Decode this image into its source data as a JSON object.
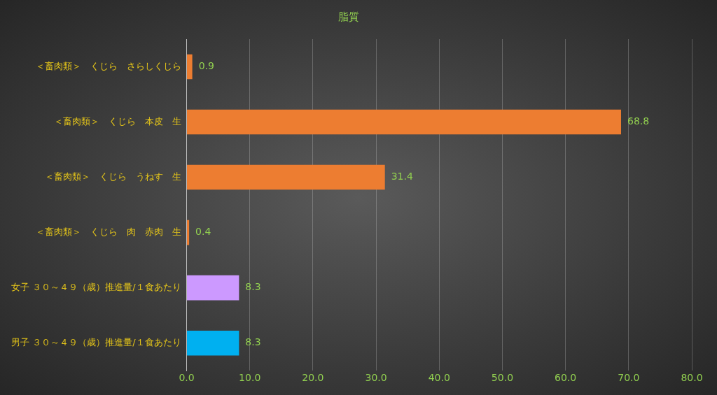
{
  "chart_data": {
    "type": "bar",
    "orientation": "horizontal",
    "title": "脂質",
    "categories": [
      "＜畜肉類＞　くじら　さらしくじら",
      "＜畜肉類＞　くじら　本皮　生",
      "＜畜肉類＞　くじら　うねす　生",
      "＜畜肉類＞　くじら　肉　赤肉　生",
      "女子 ３０～４９（歳）推進量/１食あたり",
      "男子 ３０～４９（歳）推進量/１食あたり"
    ],
    "values": [
      0.9,
      68.8,
      31.4,
      0.4,
      8.3,
      8.3
    ],
    "colors": [
      "#ed7d31",
      "#ed7d31",
      "#ed7d31",
      "#ed7d31",
      "#cc99ff",
      "#00b0f0"
    ],
    "xlim": [
      0,
      80
    ],
    "xticks": [
      {
        "value": 0,
        "label": "0.0"
      },
      {
        "value": 10,
        "label": "10.0"
      },
      {
        "value": 20,
        "label": "20.0"
      },
      {
        "value": 30,
        "label": "30.0"
      },
      {
        "value": 40,
        "label": "40.0"
      },
      {
        "value": 50,
        "label": "50.0"
      },
      {
        "value": 60,
        "label": "60.0"
      },
      {
        "value": 70,
        "label": "70.0"
      },
      {
        "value": 80,
        "label": "80.0"
      }
    ],
    "grid": "x",
    "data_labels": true,
    "legend": false
  }
}
